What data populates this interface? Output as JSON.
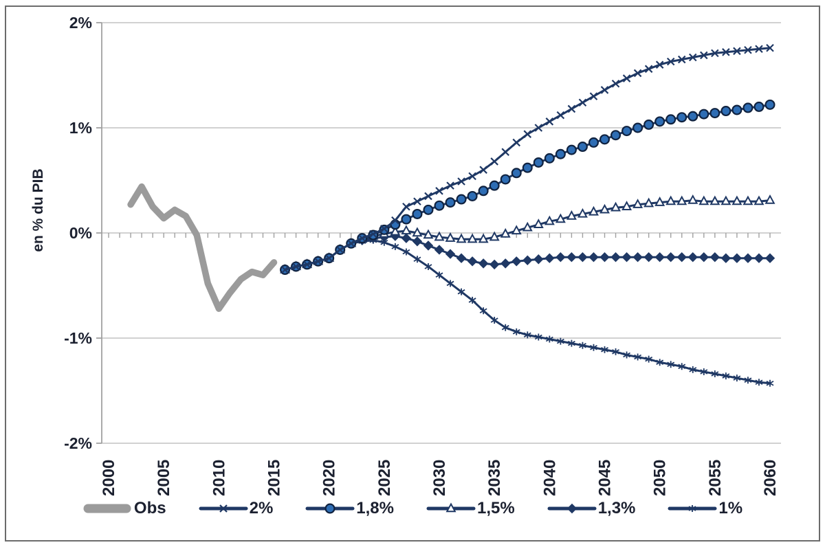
{
  "figure": {
    "ylabel": "en % du PIB"
  },
  "colors": {
    "navy": "#1f3864",
    "marker_ring": "#10223f",
    "circle_fill": "#2e6db4",
    "obs_gray": "#9b9b9b",
    "grid": "#c2c2c2",
    "axis": "#a0a0a0",
    "text": "#1c2130",
    "border": "#6b6b6b"
  },
  "legend": {
    "items": [
      {
        "label": "Obs",
        "marker": "obs"
      },
      {
        "label": "2%",
        "marker": "x"
      },
      {
        "label": "1,8%",
        "marker": "circle"
      },
      {
        "label": "1,5%",
        "marker": "triangle"
      },
      {
        "label": "1,3%",
        "marker": "diamond"
      },
      {
        "label": "1%",
        "marker": "star"
      }
    ]
  },
  "chart_data": {
    "type": "line",
    "title": "",
    "xlabel": "",
    "ylabel": "en % du PIB",
    "ylim": [
      -2,
      2
    ],
    "xlim": [
      2000,
      2060
    ],
    "grid": "horizontal",
    "legend_position": "bottom",
    "y_ticks": [
      {
        "label": "2%",
        "value": 2
      },
      {
        "label": "1%",
        "value": 1
      },
      {
        "label": "0%",
        "value": 0
      },
      {
        "label": "-1%",
        "value": -1
      },
      {
        "label": "-2%",
        "value": -2
      }
    ],
    "x_ticks": [
      {
        "label": "2000",
        "value": 2000
      },
      {
        "label": "2005",
        "value": 2005
      },
      {
        "label": "2010",
        "value": 2010
      },
      {
        "label": "2015",
        "value": 2015
      },
      {
        "label": "2020",
        "value": 2020
      },
      {
        "label": "2025",
        "value": 2025
      },
      {
        "label": "2030",
        "value": 2030
      },
      {
        "label": "2035",
        "value": 2035
      },
      {
        "label": "2040",
        "value": 2040
      },
      {
        "label": "2045",
        "value": 2045
      },
      {
        "label": "2050",
        "value": 2050
      },
      {
        "label": "2055",
        "value": 2055
      },
      {
        "label": "2060",
        "value": 2060
      }
    ],
    "x_minor_tick_every_years": 1,
    "series": [
      {
        "name": "Obs",
        "marker": "none",
        "role": "observed",
        "points": [
          [
            2002,
            0.27
          ],
          [
            2003,
            0.44
          ],
          [
            2004,
            0.25
          ],
          [
            2005,
            0.14
          ],
          [
            2006,
            0.22
          ],
          [
            2007,
            0.16
          ],
          [
            2008,
            -0.02
          ],
          [
            2009,
            -0.48
          ],
          [
            2010,
            -0.72
          ],
          [
            2011,
            -0.57
          ],
          [
            2012,
            -0.44
          ],
          [
            2013,
            -0.37
          ],
          [
            2014,
            -0.4
          ],
          [
            2015,
            -0.28
          ]
        ]
      },
      {
        "name": "2%",
        "marker": "x",
        "role": "scenario",
        "points": [
          [
            2016,
            -0.35
          ],
          [
            2017,
            -0.32
          ],
          [
            2018,
            -0.3
          ],
          [
            2019,
            -0.27
          ],
          [
            2020,
            -0.24
          ],
          [
            2021,
            -0.16
          ],
          [
            2022,
            -0.1
          ],
          [
            2023,
            -0.05
          ],
          [
            2024,
            -0.01
          ],
          [
            2025,
            0.04
          ],
          [
            2026,
            0.12
          ],
          [
            2027,
            0.25
          ],
          [
            2028,
            0.3
          ],
          [
            2029,
            0.35
          ],
          [
            2030,
            0.4
          ],
          [
            2031,
            0.45
          ],
          [
            2032,
            0.49
          ],
          [
            2033,
            0.54
          ],
          [
            2034,
            0.6
          ],
          [
            2035,
            0.68
          ],
          [
            2036,
            0.77
          ],
          [
            2037,
            0.86
          ],
          [
            2038,
            0.94
          ],
          [
            2039,
            1.0
          ],
          [
            2040,
            1.06
          ],
          [
            2041,
            1.12
          ],
          [
            2042,
            1.18
          ],
          [
            2043,
            1.24
          ],
          [
            2044,
            1.3
          ],
          [
            2045,
            1.36
          ],
          [
            2046,
            1.42
          ],
          [
            2047,
            1.47
          ],
          [
            2048,
            1.52
          ],
          [
            2049,
            1.56
          ],
          [
            2050,
            1.6
          ],
          [
            2051,
            1.63
          ],
          [
            2052,
            1.65
          ],
          [
            2053,
            1.67
          ],
          [
            2054,
            1.69
          ],
          [
            2055,
            1.71
          ],
          [
            2056,
            1.72
          ],
          [
            2057,
            1.73
          ],
          [
            2058,
            1.74
          ],
          [
            2059,
            1.75
          ],
          [
            2060,
            1.76
          ]
        ]
      },
      {
        "name": "1,8%",
        "marker": "circle",
        "role": "scenario",
        "points": [
          [
            2016,
            -0.35
          ],
          [
            2017,
            -0.32
          ],
          [
            2018,
            -0.3
          ],
          [
            2019,
            -0.27
          ],
          [
            2020,
            -0.24
          ],
          [
            2021,
            -0.16
          ],
          [
            2022,
            -0.1
          ],
          [
            2023,
            -0.05
          ],
          [
            2024,
            -0.02
          ],
          [
            2025,
            0.03
          ],
          [
            2026,
            0.08
          ],
          [
            2027,
            0.13
          ],
          [
            2028,
            0.18
          ],
          [
            2029,
            0.22
          ],
          [
            2030,
            0.26
          ],
          [
            2031,
            0.29
          ],
          [
            2032,
            0.32
          ],
          [
            2033,
            0.35
          ],
          [
            2034,
            0.4
          ],
          [
            2035,
            0.45
          ],
          [
            2036,
            0.51
          ],
          [
            2037,
            0.57
          ],
          [
            2038,
            0.62
          ],
          [
            2039,
            0.67
          ],
          [
            2040,
            0.71
          ],
          [
            2041,
            0.75
          ],
          [
            2042,
            0.79
          ],
          [
            2043,
            0.82
          ],
          [
            2044,
            0.86
          ],
          [
            2045,
            0.89
          ],
          [
            2046,
            0.93
          ],
          [
            2047,
            0.97
          ],
          [
            2048,
            1.0
          ],
          [
            2049,
            1.03
          ],
          [
            2050,
            1.06
          ],
          [
            2051,
            1.08
          ],
          [
            2052,
            1.1
          ],
          [
            2053,
            1.11
          ],
          [
            2054,
            1.13
          ],
          [
            2055,
            1.14
          ],
          [
            2056,
            1.16
          ],
          [
            2057,
            1.17
          ],
          [
            2058,
            1.19
          ],
          [
            2059,
            1.2
          ],
          [
            2060,
            1.22
          ]
        ]
      },
      {
        "name": "1,5%",
        "marker": "triangle",
        "role": "scenario",
        "points": [
          [
            2016,
            -0.35
          ],
          [
            2017,
            -0.32
          ],
          [
            2018,
            -0.3
          ],
          [
            2019,
            -0.27
          ],
          [
            2020,
            -0.24
          ],
          [
            2021,
            -0.16
          ],
          [
            2022,
            -0.1
          ],
          [
            2023,
            -0.06
          ],
          [
            2024,
            -0.03
          ],
          [
            2025,
            -0.01
          ],
          [
            2026,
            0.01
          ],
          [
            2027,
            0.02
          ],
          [
            2028,
            0.0
          ],
          [
            2029,
            -0.02
          ],
          [
            2030,
            -0.04
          ],
          [
            2031,
            -0.05
          ],
          [
            2032,
            -0.06
          ],
          [
            2033,
            -0.06
          ],
          [
            2034,
            -0.06
          ],
          [
            2035,
            -0.04
          ],
          [
            2036,
            -0.01
          ],
          [
            2037,
            0.02
          ],
          [
            2038,
            0.05
          ],
          [
            2039,
            0.08
          ],
          [
            2040,
            0.11
          ],
          [
            2041,
            0.13
          ],
          [
            2042,
            0.16
          ],
          [
            2043,
            0.18
          ],
          [
            2044,
            0.2
          ],
          [
            2045,
            0.22
          ],
          [
            2046,
            0.24
          ],
          [
            2047,
            0.25
          ],
          [
            2048,
            0.27
          ],
          [
            2049,
            0.28
          ],
          [
            2050,
            0.29
          ],
          [
            2051,
            0.3
          ],
          [
            2052,
            0.3
          ],
          [
            2053,
            0.31
          ],
          [
            2054,
            0.3
          ],
          [
            2055,
            0.3
          ],
          [
            2056,
            0.3
          ],
          [
            2057,
            0.3
          ],
          [
            2058,
            0.3
          ],
          [
            2059,
            0.3
          ],
          [
            2060,
            0.31
          ]
        ]
      },
      {
        "name": "1,3%",
        "marker": "diamond",
        "role": "scenario",
        "points": [
          [
            2016,
            -0.35
          ],
          [
            2017,
            -0.32
          ],
          [
            2018,
            -0.3
          ],
          [
            2019,
            -0.27
          ],
          [
            2020,
            -0.24
          ],
          [
            2021,
            -0.16
          ],
          [
            2022,
            -0.1
          ],
          [
            2023,
            -0.07
          ],
          [
            2024,
            -0.05
          ],
          [
            2025,
            -0.04
          ],
          [
            2026,
            -0.03
          ],
          [
            2027,
            -0.05
          ],
          [
            2028,
            -0.08
          ],
          [
            2029,
            -0.12
          ],
          [
            2030,
            -0.16
          ],
          [
            2031,
            -0.2
          ],
          [
            2032,
            -0.24
          ],
          [
            2033,
            -0.27
          ],
          [
            2034,
            -0.29
          ],
          [
            2035,
            -0.3
          ],
          [
            2036,
            -0.29
          ],
          [
            2037,
            -0.27
          ],
          [
            2038,
            -0.26
          ],
          [
            2039,
            -0.25
          ],
          [
            2040,
            -0.24
          ],
          [
            2041,
            -0.23
          ],
          [
            2042,
            -0.23
          ],
          [
            2043,
            -0.23
          ],
          [
            2044,
            -0.23
          ],
          [
            2045,
            -0.23
          ],
          [
            2046,
            -0.23
          ],
          [
            2047,
            -0.23
          ],
          [
            2048,
            -0.23
          ],
          [
            2049,
            -0.23
          ],
          [
            2050,
            -0.23
          ],
          [
            2051,
            -0.23
          ],
          [
            2052,
            -0.23
          ],
          [
            2053,
            -0.23
          ],
          [
            2054,
            -0.23
          ],
          [
            2055,
            -0.23
          ],
          [
            2056,
            -0.24
          ],
          [
            2057,
            -0.24
          ],
          [
            2058,
            -0.24
          ],
          [
            2059,
            -0.24
          ],
          [
            2060,
            -0.24
          ]
        ]
      },
      {
        "name": "1%",
        "marker": "star",
        "role": "scenario",
        "points": [
          [
            2016,
            -0.35
          ],
          [
            2017,
            -0.32
          ],
          [
            2018,
            -0.3
          ],
          [
            2019,
            -0.27
          ],
          [
            2020,
            -0.24
          ],
          [
            2021,
            -0.16
          ],
          [
            2022,
            -0.1
          ],
          [
            2023,
            -0.08
          ],
          [
            2024,
            -0.07
          ],
          [
            2025,
            -0.09
          ],
          [
            2026,
            -0.13
          ],
          [
            2027,
            -0.18
          ],
          [
            2028,
            -0.25
          ],
          [
            2029,
            -0.32
          ],
          [
            2030,
            -0.4
          ],
          [
            2031,
            -0.48
          ],
          [
            2032,
            -0.56
          ],
          [
            2033,
            -0.64
          ],
          [
            2034,
            -0.74
          ],
          [
            2035,
            -0.83
          ],
          [
            2036,
            -0.9
          ],
          [
            2037,
            -0.94
          ],
          [
            2038,
            -0.97
          ],
          [
            2039,
            -0.99
          ],
          [
            2040,
            -1.01
          ],
          [
            2041,
            -1.03
          ],
          [
            2042,
            -1.05
          ],
          [
            2043,
            -1.07
          ],
          [
            2044,
            -1.09
          ],
          [
            2045,
            -1.11
          ],
          [
            2046,
            -1.13
          ],
          [
            2047,
            -1.16
          ],
          [
            2048,
            -1.18
          ],
          [
            2049,
            -1.2
          ],
          [
            2050,
            -1.23
          ],
          [
            2051,
            -1.25
          ],
          [
            2052,
            -1.27
          ],
          [
            2053,
            -1.3
          ],
          [
            2054,
            -1.32
          ],
          [
            2055,
            -1.34
          ],
          [
            2056,
            -1.36
          ],
          [
            2057,
            -1.38
          ],
          [
            2058,
            -1.4
          ],
          [
            2059,
            -1.42
          ],
          [
            2060,
            -1.43
          ]
        ]
      }
    ]
  }
}
